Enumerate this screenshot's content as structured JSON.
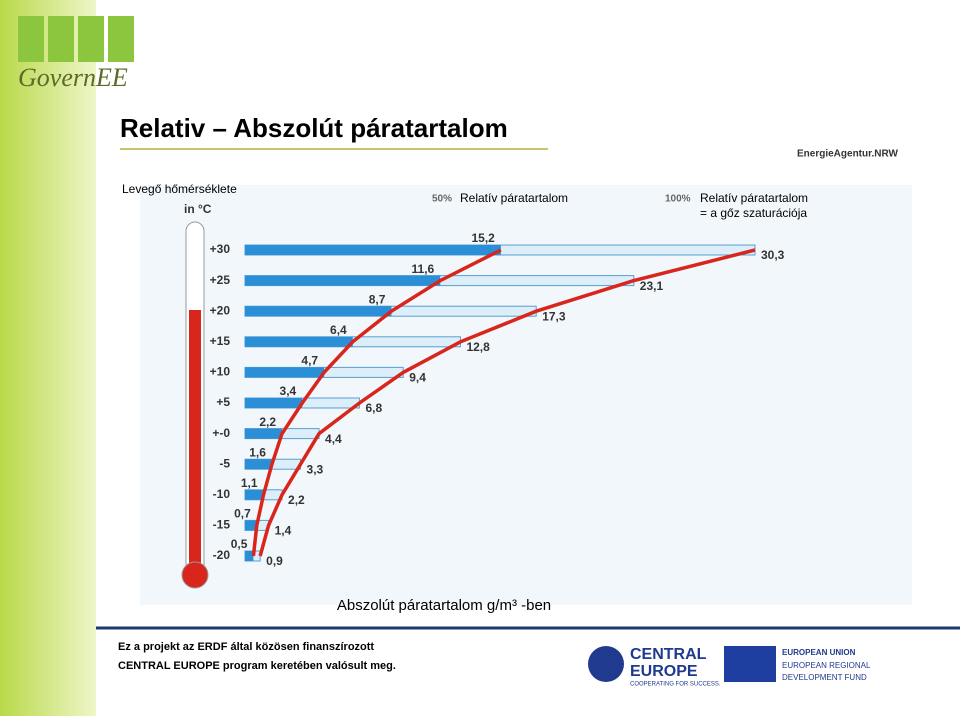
{
  "slide": {
    "logo": "GovernEE",
    "title": "Relativ – Abszolút páratartalom",
    "partner_logo": "EnergieAgentur.NRW",
    "footer": [
      "Ez a projekt az ERDF által közösen finanszírozott",
      "CENTRAL EUROPE  program keretében valósult meg."
    ],
    "ce_logo": [
      "CENTRAL",
      "EUROPE",
      "COOPERATING FOR SUCCESS."
    ],
    "eu_logo": [
      "EUROPEAN UNION",
      "EUROPEAN REGIONAL",
      "DEVELOPMENT FUND"
    ]
  },
  "chart_data": {
    "type": "bar",
    "orientation": "horizontal",
    "y_label": "Levegő hőmérséklete",
    "y_unit": "in °C",
    "x_label": "Abszolút páratartalom g/m³ -ben",
    "legend": [
      {
        "pct": "50%",
        "text": [
          "Relatív páratartalom"
        ]
      },
      {
        "pct": "100%",
        "text": [
          "Relatív páratartalom",
          "= a gőz szaturációja"
        ]
      }
    ],
    "categories": [
      "+30",
      "+25",
      "+20",
      "+15",
      "+10",
      "+5",
      "+-0",
      "-5",
      "-10",
      "-15",
      "-20"
    ],
    "series": [
      {
        "name": "50%",
        "color": "#2a8fd6",
        "values": [
          15.2,
          11.6,
          8.7,
          6.4,
          4.7,
          3.4,
          2.2,
          1.6,
          1.1,
          0.7,
          0.5
        ],
        "value_labels": [
          "15,2",
          "11,6",
          "8,7",
          "6,4",
          "4,7",
          "3,4",
          "2,2",
          "1,6",
          "1,1",
          "0,7",
          "0,5"
        ]
      },
      {
        "name": "100%",
        "color": "#dbeefa",
        "values": [
          30.3,
          23.1,
          17.3,
          12.8,
          9.4,
          6.8,
          4.4,
          3.3,
          2.2,
          1.4,
          0.9
        ],
        "value_labels": [
          "30,3",
          "23,1",
          "17,3",
          "12,8",
          "9,4",
          "6,8",
          "4,4",
          "3,3",
          "2,2",
          "1,4",
          "0,9"
        ]
      }
    ],
    "curve_color": "#d8261c",
    "xlim": [
      0,
      30.3
    ]
  }
}
